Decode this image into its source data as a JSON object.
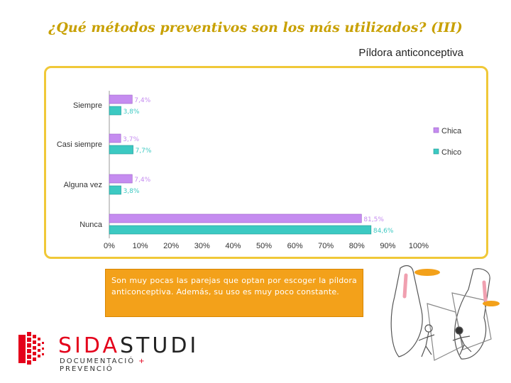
{
  "page": {
    "title": "¿Qué métodos preventivos son los más utilizados? (III)",
    "subtitle": "Píldora anticonceptiva",
    "body_text": "Son muy pocas las parejas que optan por escoger la píldora anticonceptiva. Además, su uso es muy poco constante."
  },
  "logo": {
    "name_part1": "SIDA",
    "name_part2": "STUDI",
    "tagline_part1": "DOCUMENTACIÓ",
    "tagline_plus": " + ",
    "tagline_part2": "PREVENCIÓ"
  },
  "colors": {
    "chica": "#c58cf0",
    "chico": "#3cc9c2",
    "title": "#c8a000",
    "box_border": "#f0c838",
    "text_box": "#f3a11a",
    "brand_red": "#e4001b"
  },
  "chart_data": {
    "type": "bar",
    "orientation": "horizontal",
    "categories": [
      "Siempre",
      "Casi siempre",
      "Alguna vez",
      "Nunca"
    ],
    "series": [
      {
        "name": "Chica",
        "values": [
          7.4,
          3.7,
          7.4,
          81.5
        ],
        "labels": [
          "7,4%",
          "3,7%",
          "7,4%",
          "81,5%"
        ]
      },
      {
        "name": "Chico",
        "values": [
          3.8,
          7.7,
          3.8,
          84.6
        ],
        "labels": [
          "3,8%",
          "7,7%",
          "3,8%",
          "84,6%"
        ]
      }
    ],
    "xlim": [
      0,
      100
    ],
    "ticks": [
      "0%",
      "10%",
      "20%",
      "30%",
      "40%",
      "50%",
      "60%",
      "70%",
      "80%",
      "90%",
      "100%"
    ],
    "legend_position": "right",
    "grid": false
  }
}
